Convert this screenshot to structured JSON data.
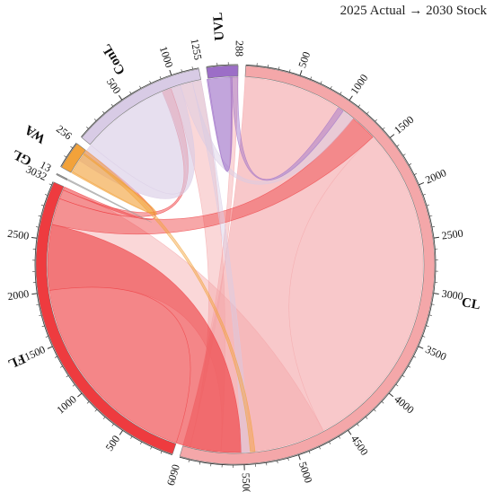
{
  "title": "2025 Actual → 2030 Stock",
  "chart_data": {
    "type": "chord",
    "title": "2025 Actual → 2030 Stock",
    "sectors": [
      {
        "key": "CL",
        "name": "CL",
        "total": 6090,
        "color": "#f4a7a9",
        "ticks": [
          500,
          1000,
          1500,
          2000,
          2500,
          3000,
          3500,
          4000,
          4500,
          5000,
          5500
        ],
        "end_label": "6090"
      },
      {
        "key": "FL",
        "name": "FL",
        "total": 3032,
        "color": "#ee3b3f",
        "ticks": [
          500,
          1000,
          1500,
          2000,
          2500
        ],
        "end_label": "3032"
      },
      {
        "key": "GL",
        "name": "GL",
        "total": 13,
        "color": "#9b9b9b",
        "ticks": [],
        "end_label": "13"
      },
      {
        "key": "WA",
        "name": "WA",
        "total": 256,
        "color": "#f2a23a",
        "ticks": [],
        "end_label": "256"
      },
      {
        "key": "ConL",
        "name": "ConL",
        "total": 1255,
        "color": "#d8cbe5",
        "ticks": [
          500,
          1000
        ],
        "end_label": "1255"
      },
      {
        "key": "UVL",
        "name": "UVL",
        "total": 288,
        "color": "#9c6ec7",
        "ticks": [],
        "end_label": "288"
      }
    ],
    "flows": [
      {
        "from": "CL",
        "to": "CL",
        "value": 4700
      },
      {
        "from": "CL",
        "to": "FL",
        "value": 1020
      },
      {
        "from": "CL",
        "to": "ConL",
        "value": 300
      },
      {
        "from": "CL",
        "to": "UVL",
        "value": 70
      },
      {
        "from": "FL",
        "to": "FL",
        "value": 2650
      },
      {
        "from": "FL",
        "to": "CL",
        "value": 260
      },
      {
        "from": "FL",
        "to": "ConL",
        "value": 90
      },
      {
        "from": "FL",
        "to": "WA",
        "value": 32
      },
      {
        "from": "ConL",
        "to": "ConL",
        "value": 1050
      },
      {
        "from": "ConL",
        "to": "CL",
        "value": 120
      },
      {
        "from": "ConL",
        "to": "FL",
        "value": 85
      },
      {
        "from": "WA",
        "to": "WA",
        "value": 210
      },
      {
        "from": "WA",
        "to": "FL",
        "value": 46
      },
      {
        "from": "UVL",
        "to": "UVL",
        "value": 230
      },
      {
        "from": "UVL",
        "to": "CL",
        "value": 58
      },
      {
        "from": "GL",
        "to": "GL",
        "value": 13
      }
    ]
  }
}
